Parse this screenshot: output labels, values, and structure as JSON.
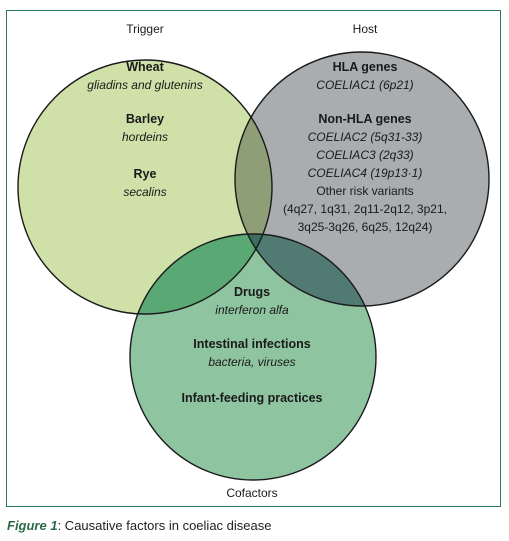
{
  "sets": {
    "trigger": {
      "title": "Trigger",
      "fill": "#cfe0a8"
    },
    "host": {
      "title": "Host",
      "fill": "#a9adb0"
    },
    "cofactors": {
      "title": "Cofactors",
      "fill": "#8fc4a0"
    }
  },
  "overlap_colors": {
    "trigger_host": "#8e9f78",
    "trigger_cofactors": "#5aa873",
    "host_cofactors": "#507a72",
    "all": "#3e6e5e",
    "border": "#2a7a5a"
  },
  "trigger_items": [
    {
      "name": "Wheat",
      "detail": "gliadins and glutenins"
    },
    {
      "name": "Barley",
      "detail": "hordeins"
    },
    {
      "name": "Rye",
      "detail": "secalins"
    }
  ],
  "host_items": {
    "hla_title": "HLA genes",
    "hla_detail": "COELIAC1 (6p21)",
    "nonhla_title": "Non-HLA genes",
    "lines": [
      "COELIAC2 (5q31-33)",
      "COELIAC3 (2q33)",
      "COELIAC4 (19p13·1)",
      "Other risk variants",
      "(4q27, 1q31, 2q11-2q12, 3p21,",
      "3q25-3q26, 6q25, 12q24)"
    ]
  },
  "cofactor_items": [
    {
      "name": "Drugs",
      "detail": "interferon alfa"
    },
    {
      "name": "Intestinal infections",
      "detail": "bacteria, viruses"
    },
    {
      "name": "Infant-feeding practices",
      "detail": ""
    }
  ],
  "caption": {
    "figure": "Figure 1",
    "text": ": Causative factors in coeliac disease"
  }
}
